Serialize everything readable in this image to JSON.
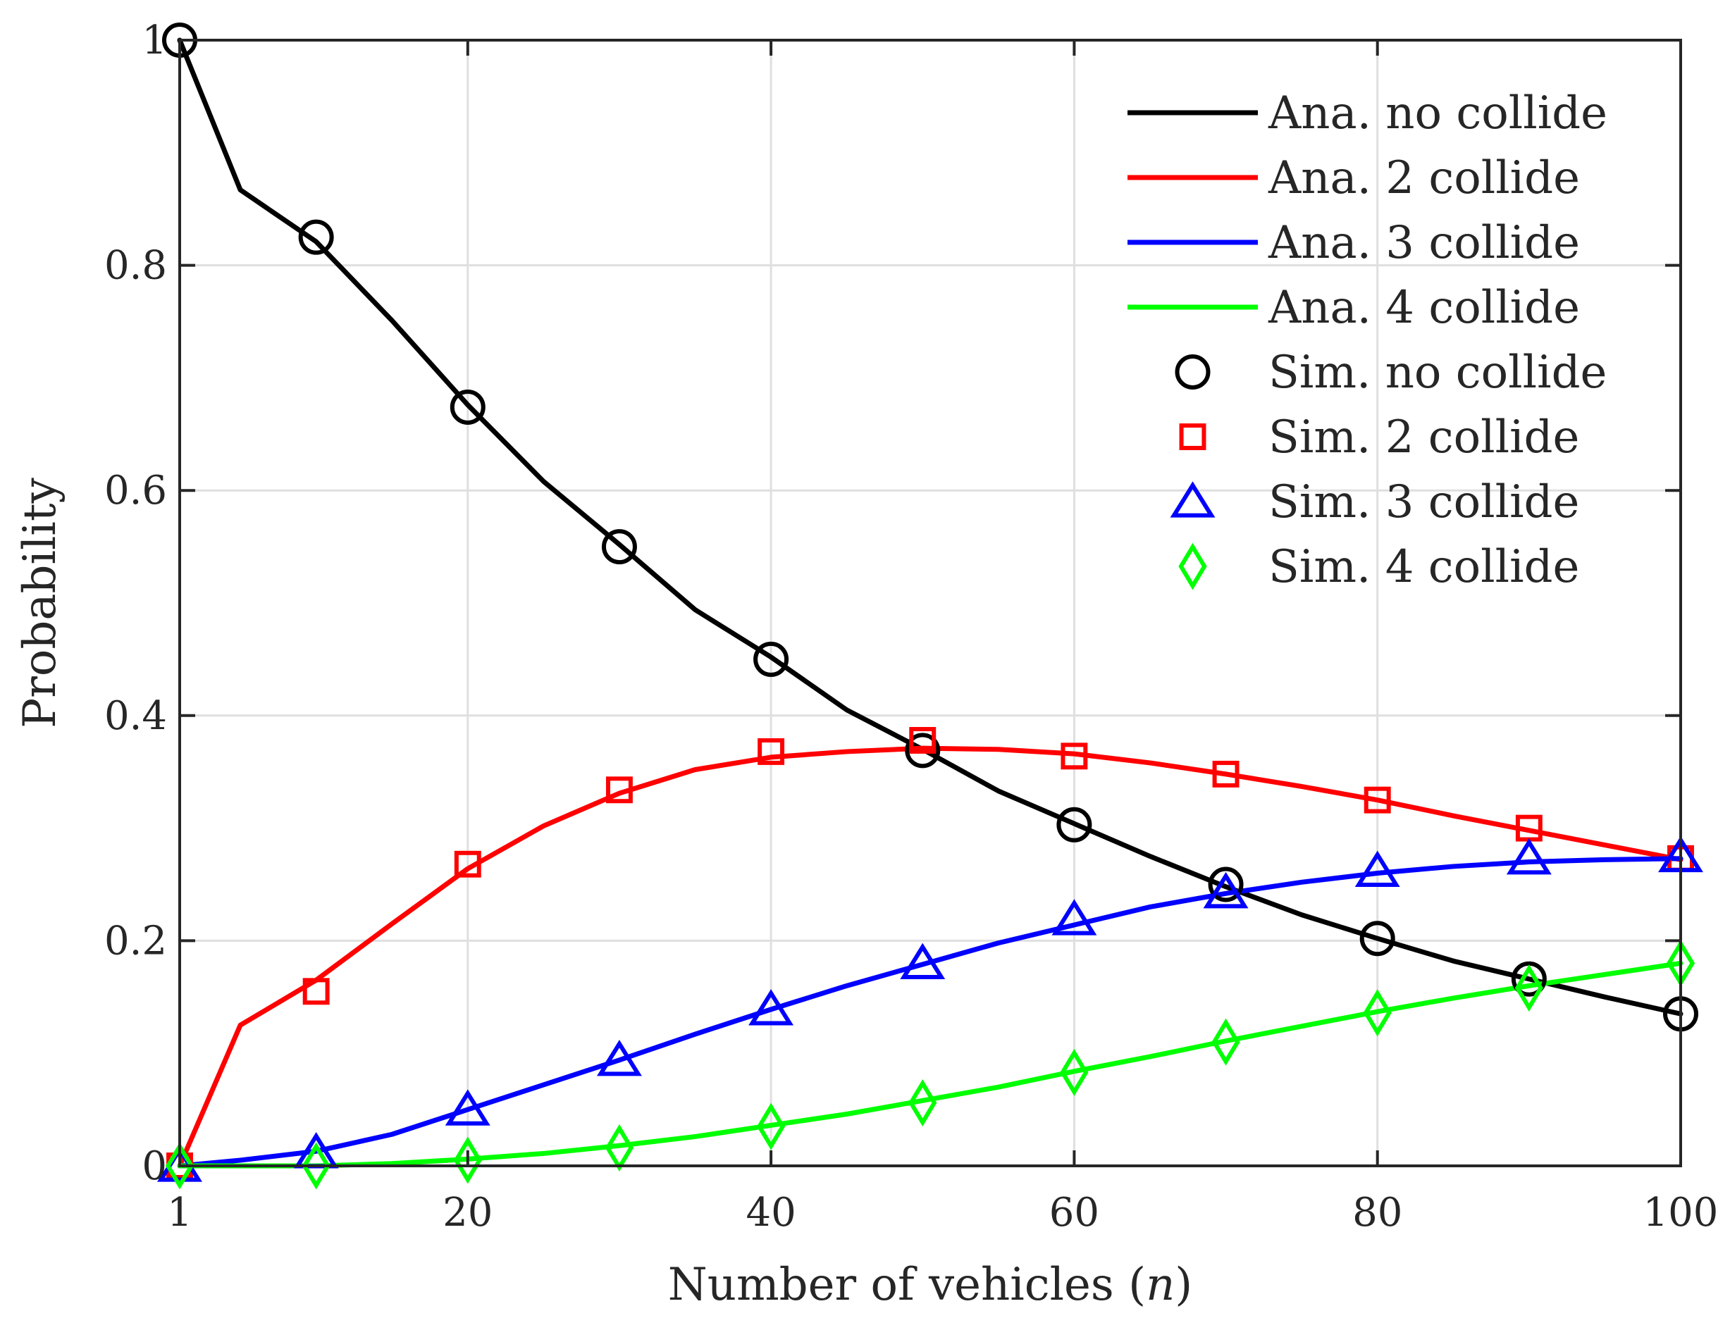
{
  "chart_data": {
    "type": "line",
    "xlabel": "Number of vehicles (",
    "xlabel_var": "n",
    "xlabel_end": ")",
    "ylabel": "Probability",
    "xlim": [
      1,
      100
    ],
    "ylim": [
      0,
      1
    ],
    "xticks": [
      1,
      20,
      40,
      60,
      80,
      100
    ],
    "xtick_labels": [
      "1",
      "20",
      "40",
      "60",
      "80",
      "100"
    ],
    "yticks": [
      0,
      0.2,
      0.4,
      0.6,
      0.8,
      1
    ],
    "ytick_labels": [
      "0",
      "0.2",
      "0.4",
      "0.6",
      "0.8",
      "1"
    ],
    "grid": true,
    "legend_position": "top-right",
    "analytic_x": [
      1,
      5,
      10,
      15,
      20,
      25,
      30,
      35,
      40,
      45,
      50,
      55,
      60,
      65,
      70,
      75,
      80,
      85,
      90,
      95,
      100
    ],
    "sim_x": [
      1,
      10,
      20,
      30,
      40,
      50,
      60,
      70,
      80,
      90,
      100
    ],
    "series": [
      {
        "name": "Ana. no collide",
        "color": "#000000",
        "kind": "line",
        "values": [
          1.0,
          0.867,
          0.821,
          0.751,
          0.676,
          0.608,
          0.552,
          0.494,
          0.452,
          0.405,
          0.37,
          0.333,
          0.304,
          0.275,
          0.248,
          0.223,
          0.202,
          0.182,
          0.166,
          0.15,
          0.135
        ]
      },
      {
        "name": "Ana. 2 collide",
        "color": "#ff0000",
        "kind": "line",
        "values": [
          0.0,
          0.125,
          0.165,
          0.215,
          0.264,
          0.302,
          0.331,
          0.352,
          0.363,
          0.368,
          0.371,
          0.37,
          0.366,
          0.358,
          0.348,
          0.337,
          0.325,
          0.311,
          0.298,
          0.285,
          0.272
        ]
      },
      {
        "name": "Ana. 3 collide",
        "color": "#0000ff",
        "kind": "line",
        "values": [
          0.0,
          0.005,
          0.013,
          0.028,
          0.05,
          0.072,
          0.094,
          0.117,
          0.139,
          0.16,
          0.179,
          0.198,
          0.214,
          0.23,
          0.242,
          0.252,
          0.26,
          0.266,
          0.27,
          0.272,
          0.273
        ]
      },
      {
        "name": "Ana. 4 collide",
        "color": "#00ff00",
        "kind": "line",
        "values": [
          0.0,
          0.0,
          0.0,
          0.002,
          0.006,
          0.011,
          0.018,
          0.026,
          0.036,
          0.046,
          0.058,
          0.07,
          0.084,
          0.097,
          0.111,
          0.124,
          0.137,
          0.149,
          0.16,
          0.17,
          0.18
        ]
      },
      {
        "name": "Sim. no collide",
        "color": "#000000",
        "kind": "marker",
        "marker": "circle",
        "values": [
          1.0,
          0.825,
          0.674,
          0.55,
          0.45,
          0.369,
          0.303,
          0.25,
          0.202,
          0.166,
          0.135
        ]
      },
      {
        "name": "Sim. 2 collide",
        "color": "#ff0000",
        "kind": "marker",
        "marker": "square",
        "values": [
          0.0,
          0.155,
          0.268,
          0.334,
          0.368,
          0.378,
          0.364,
          0.348,
          0.325,
          0.3,
          0.273
        ]
      },
      {
        "name": "Sim. 3 collide",
        "color": "#0000ff",
        "kind": "marker",
        "marker": "triangle",
        "values": [
          0.0,
          0.012,
          0.05,
          0.094,
          0.139,
          0.18,
          0.219,
          0.243,
          0.262,
          0.273,
          0.275
        ]
      },
      {
        "name": "Sim. 4 collide",
        "color": "#00ff00",
        "kind": "marker",
        "marker": "diamond",
        "values": [
          0.0,
          0.0,
          0.005,
          0.016,
          0.035,
          0.056,
          0.083,
          0.11,
          0.136,
          0.158,
          0.18
        ]
      }
    ]
  }
}
